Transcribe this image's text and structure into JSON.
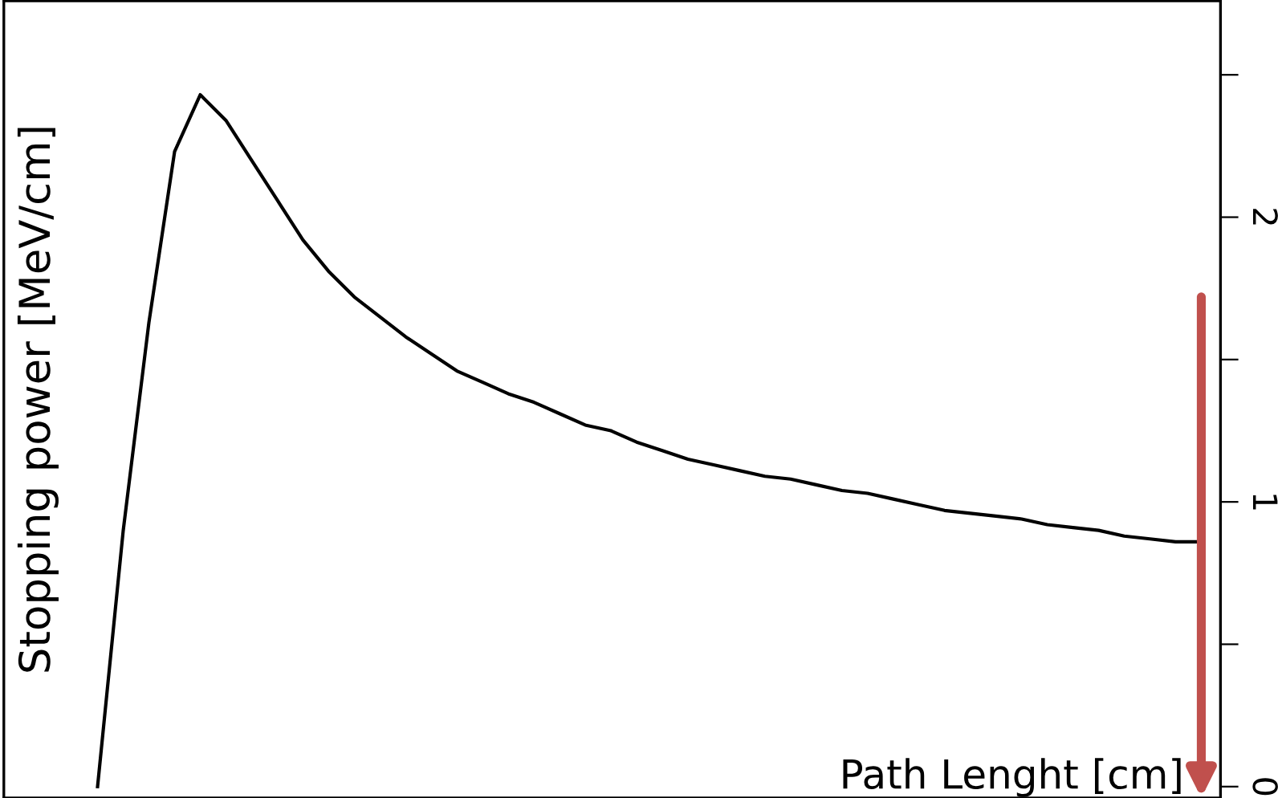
{
  "chart_data": {
    "type": "line",
    "xlabel": "Path Lenght [cm]",
    "ylabel": "Stopping power [MeV/cm]",
    "categories": [
      null,
      null,
      null,
      null,
      null,
      null,
      null,
      null,
      null,
      null,
      null,
      null,
      null,
      null,
      null,
      null,
      null,
      null,
      null,
      null,
      null,
      null,
      null,
      null,
      null,
      null,
      null,
      null,
      null,
      null,
      null,
      null,
      null,
      null,
      null,
      null,
      null,
      null,
      null,
      null,
      null,
      null,
      null,
      null
    ],
    "series": [
      {
        "color": "#000000",
        "values": [
          0,
          0.9,
          1.63,
          2.23,
          2.43,
          2.34,
          2.2,
          2.06,
          1.92,
          1.81,
          1.72,
          1.65,
          1.58,
          1.52,
          1.46,
          1.42,
          1.38,
          1.35,
          1.31,
          1.27,
          1.25,
          1.21,
          1.18,
          1.15,
          1.13,
          1.11,
          1.09,
          1.08,
          1.06,
          1.04,
          1.03,
          1.01,
          0.99,
          0.97,
          0.96,
          0.95,
          0.94,
          0.92,
          0.91,
          0.9,
          0.88,
          0.87,
          0.86,
          0.86
        ]
      }
    ],
    "ylim": [
      -0.04,
      2.76
    ],
    "yticks": [
      0,
      {
        "value": 0.5,
        "label": null
      },
      1,
      {
        "value": 1.5,
        "label": null
      },
      2,
      {
        "value": 2.5,
        "label": null
      }
    ],
    "grid": false,
    "legend": false,
    "marker": "none",
    "line_style": "solid"
  }
}
